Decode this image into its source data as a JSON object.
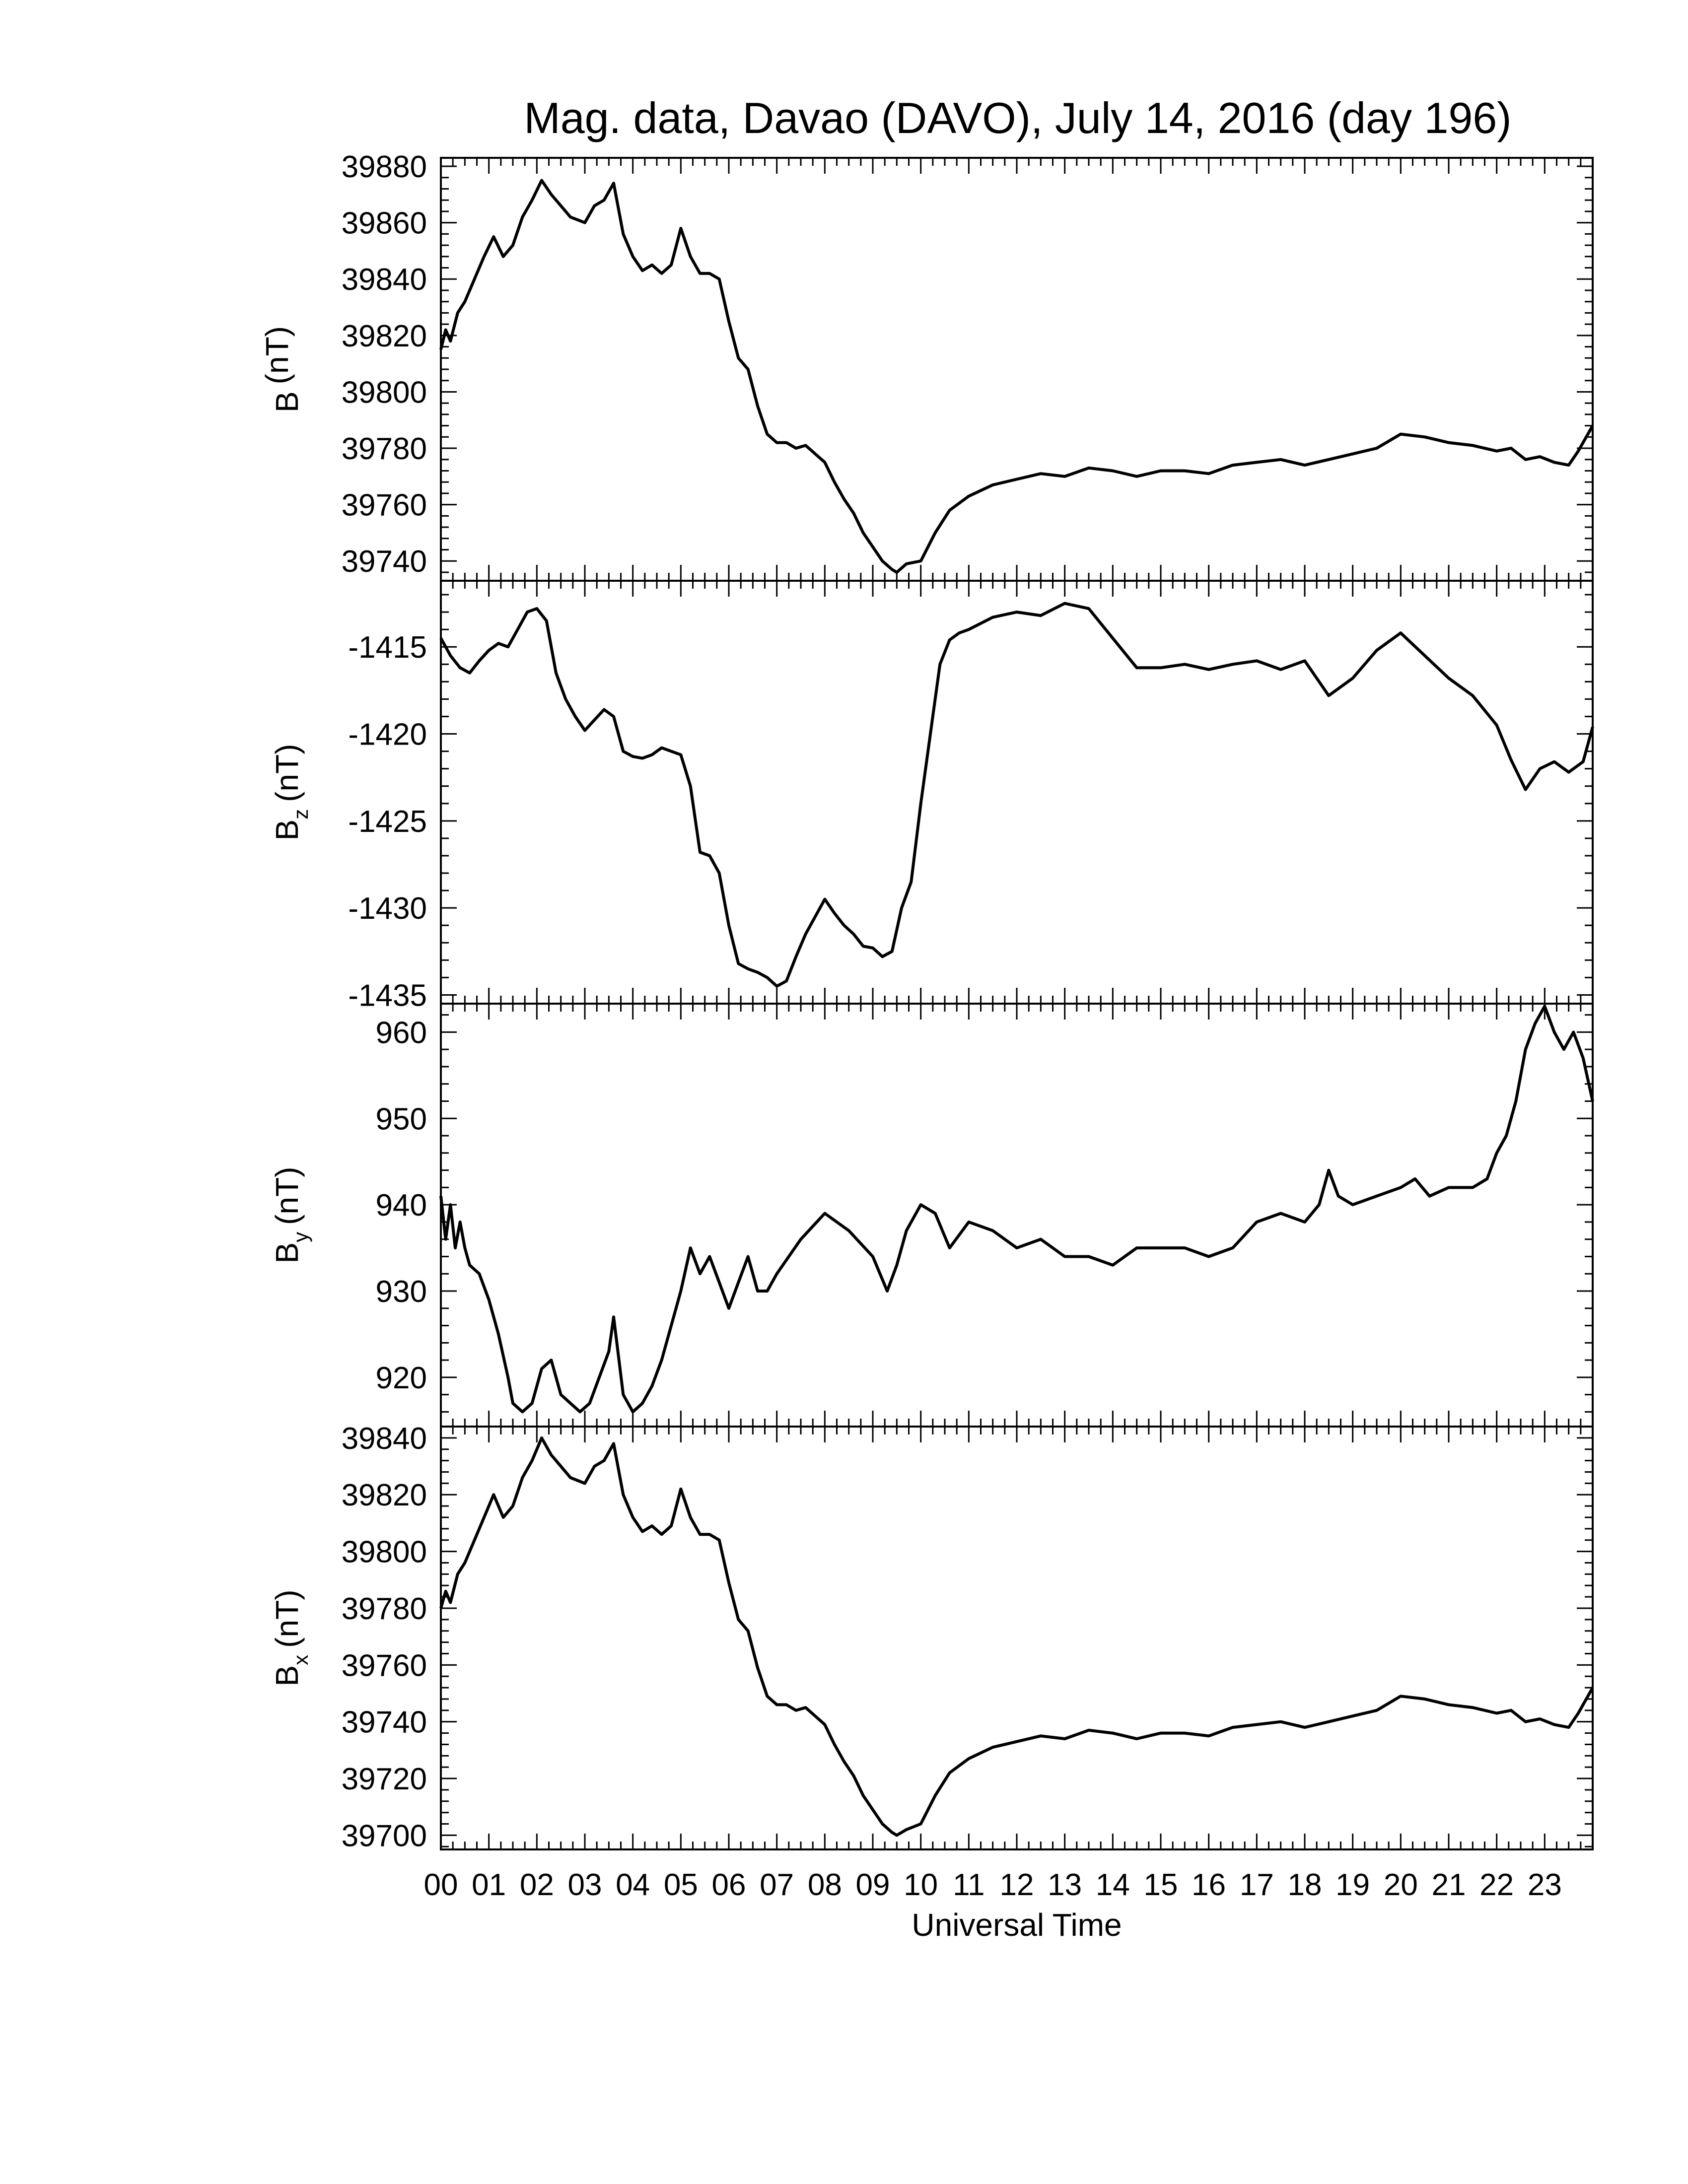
{
  "chart_data": {
    "type": "line",
    "title": "Mag. data, Davao (DAVO), July 14, 2016 (day 196)",
    "xlabel": "Universal Time",
    "xlim": [
      0,
      24
    ],
    "x_tick_labels": [
      "00",
      "01",
      "02",
      "03",
      "04",
      "05",
      "06",
      "07",
      "08",
      "09",
      "10",
      "11",
      "12",
      "13",
      "14",
      "15",
      "16",
      "17",
      "18",
      "19",
      "20",
      "21",
      "22",
      "23"
    ],
    "panels": [
      {
        "ylabel": "B (nT)",
        "ylabel_main": "B",
        "ylabel_sub": "",
        "ylabel_unit": "(nT)",
        "ylim": [
          39733,
          39883
        ],
        "y_ticks": [
          39740,
          39760,
          39780,
          39800,
          39820,
          39840,
          39860,
          39880
        ],
        "y_tick_labels": [
          "39740",
          "39760",
          "39780",
          "39800",
          "39820",
          "39840",
          "39860",
          "39880"
        ],
        "x": [
          0,
          0.1,
          0.2,
          0.35,
          0.5,
          0.7,
          0.9,
          1.1,
          1.3,
          1.5,
          1.7,
          1.9,
          2.1,
          2.3,
          2.5,
          2.7,
          3.0,
          3.2,
          3.4,
          3.6,
          3.8,
          4.0,
          4.2,
          4.4,
          4.6,
          4.8,
          5.0,
          5.2,
          5.4,
          5.6,
          5.8,
          6.0,
          6.2,
          6.4,
          6.6,
          6.8,
          7.0,
          7.2,
          7.4,
          7.6,
          7.8,
          8.0,
          8.2,
          8.4,
          8.6,
          8.8,
          9.0,
          9.2,
          9.4,
          9.5,
          9.7,
          10.0,
          10.3,
          10.6,
          11.0,
          11.5,
          12.0,
          12.5,
          13.0,
          13.5,
          14.0,
          14.5,
          15.0,
          15.5,
          16.0,
          16.5,
          17.0,
          17.5,
          18.0,
          18.5,
          19.0,
          19.5,
          20.0,
          20.5,
          21.0,
          21.5,
          22.0,
          22.3,
          22.6,
          22.9,
          23.2,
          23.5,
          23.7,
          24.0
        ],
        "y": [
          39815,
          39822,
          39818,
          39828,
          39832,
          39840,
          39848,
          39855,
          39848,
          39852,
          39862,
          39868,
          39875,
          39870,
          39866,
          39862,
          39860,
          39866,
          39868,
          39874,
          39856,
          39848,
          39843,
          39845,
          39842,
          39845,
          39858,
          39848,
          39842,
          39842,
          39840,
          39825,
          39812,
          39808,
          39795,
          39785,
          39782,
          39782,
          39780,
          39781,
          39778,
          39775,
          39768,
          39762,
          39757,
          39750,
          39745,
          39740,
          39737,
          39736,
          39739,
          39740,
          39750,
          39758,
          39763,
          39767,
          39769,
          39771,
          39770,
          39773,
          39772,
          39770,
          39772,
          39772,
          39771,
          39774,
          39775,
          39776,
          39774,
          39776,
          39778,
          39780,
          39785,
          39784,
          39782,
          39781,
          39779,
          39780,
          39776,
          39777,
          39775,
          39774,
          39779,
          39788
        ]
      },
      {
        "ylabel": "B z (nT)",
        "ylabel_main": "B",
        "ylabel_sub": "z",
        "ylabel_unit": "(nT)",
        "ylim": [
          -1435.5,
          -1411.2
        ],
        "y_ticks": [
          -1435,
          -1430,
          -1425,
          -1420,
          -1415
        ],
        "y_tick_labels": [
          "-1435",
          "-1430",
          "-1425",
          "-1420",
          "-1415"
        ],
        "x": [
          0,
          0.2,
          0.4,
          0.6,
          0.8,
          1.0,
          1.2,
          1.4,
          1.6,
          1.8,
          2.0,
          2.2,
          2.4,
          2.6,
          2.8,
          3.0,
          3.2,
          3.4,
          3.6,
          3.8,
          4.0,
          4.2,
          4.4,
          4.6,
          4.8,
          5.0,
          5.2,
          5.4,
          5.6,
          5.8,
          6.0,
          6.2,
          6.4,
          6.6,
          6.8,
          7.0,
          7.2,
          7.4,
          7.6,
          7.8,
          8.0,
          8.2,
          8.4,
          8.6,
          8.8,
          9.0,
          9.2,
          9.4,
          9.6,
          9.8,
          10.0,
          10.2,
          10.4,
          10.6,
          10.8,
          11.0,
          11.5,
          12.0,
          12.5,
          13.0,
          13.5,
          14.0,
          14.5,
          15.0,
          15.5,
          16.0,
          16.5,
          17.0,
          17.5,
          18.0,
          18.5,
          19.0,
          19.5,
          20.0,
          20.5,
          21.0,
          21.5,
          22.0,
          22.3,
          22.6,
          22.9,
          23.2,
          23.5,
          23.8,
          24.0
        ],
        "y": [
          -1414.5,
          -1415.5,
          -1416.2,
          -1416.5,
          -1415.8,
          -1415.2,
          -1414.8,
          -1415.0,
          -1414.0,
          -1413.0,
          -1412.8,
          -1413.5,
          -1416.5,
          -1418.0,
          -1419.0,
          -1419.8,
          -1419.2,
          -1418.6,
          -1419.0,
          -1421.0,
          -1421.3,
          -1421.4,
          -1421.2,
          -1420.8,
          -1421.0,
          -1421.2,
          -1423.0,
          -1426.8,
          -1427.0,
          -1428.0,
          -1431.0,
          -1433.2,
          -1433.5,
          -1433.7,
          -1434.0,
          -1434.5,
          -1434.2,
          -1432.8,
          -1431.5,
          -1430.5,
          -1429.5,
          -1430.3,
          -1431.0,
          -1431.5,
          -1432.2,
          -1432.3,
          -1432.8,
          -1432.5,
          -1430.0,
          -1428.5,
          -1424.0,
          -1420.0,
          -1416.0,
          -1414.6,
          -1414.2,
          -1414.0,
          -1413.3,
          -1413.0,
          -1413.2,
          -1412.5,
          -1412.8,
          -1414.5,
          -1416.2,
          -1416.2,
          -1416.0,
          -1416.3,
          -1416.0,
          -1415.8,
          -1416.3,
          -1415.8,
          -1417.8,
          -1416.8,
          -1415.2,
          -1414.2,
          -1415.5,
          -1416.8,
          -1417.8,
          -1419.5,
          -1421.5,
          -1423.2,
          -1422.0,
          -1421.6,
          -1422.2,
          -1421.6,
          -1419.6
        ]
      },
      {
        "ylabel": "B y (nT)",
        "ylabel_main": "B",
        "ylabel_sub": "y",
        "ylabel_unit": "(nT)",
        "ylim": [
          914.3,
          963.3
        ],
        "y_ticks": [
          920,
          930,
          940,
          950,
          960
        ],
        "y_tick_labels": [
          "920",
          "930",
          "940",
          "950",
          "960"
        ],
        "x": [
          0,
          0.1,
          0.2,
          0.3,
          0.4,
          0.5,
          0.6,
          0.8,
          1.0,
          1.2,
          1.4,
          1.5,
          1.7,
          1.9,
          2.1,
          2.3,
          2.5,
          2.7,
          2.9,
          3.1,
          3.3,
          3.5,
          3.6,
          3.8,
          4.0,
          4.2,
          4.4,
          4.6,
          4.8,
          5.0,
          5.2,
          5.4,
          5.6,
          5.8,
          6.0,
          6.2,
          6.4,
          6.6,
          6.8,
          7.0,
          7.5,
          8.0,
          8.5,
          9.0,
          9.3,
          9.5,
          9.7,
          10.0,
          10.3,
          10.6,
          11.0,
          11.5,
          12.0,
          12.5,
          13.0,
          13.5,
          14.0,
          14.5,
          15.0,
          15.5,
          16.0,
          16.5,
          17.0,
          17.5,
          18.0,
          18.3,
          18.5,
          18.7,
          19.0,
          19.5,
          20.0,
          20.3,
          20.6,
          21.0,
          21.5,
          21.8,
          22.0,
          22.2,
          22.4,
          22.6,
          22.8,
          23.0,
          23.2,
          23.4,
          23.6,
          23.8,
          24.0
        ],
        "y": [
          941,
          936,
          940,
          935,
          938,
          935,
          933,
          932,
          929,
          925,
          920,
          917,
          916,
          917,
          921,
          922,
          918,
          917,
          916,
          917,
          920,
          923,
          927,
          918,
          916,
          917,
          919,
          922,
          926,
          930,
          935,
          932,
          934,
          931,
          928,
          931,
          934,
          930,
          930,
          932,
          936,
          939,
          937,
          934,
          930,
          933,
          937,
          940,
          939,
          935,
          938,
          937,
          935,
          936,
          934,
          934,
          933,
          935,
          935,
          935,
          934,
          935,
          938,
          939,
          938,
          940,
          944,
          941,
          940,
          941,
          942,
          943,
          941,
          942,
          942,
          943,
          946,
          948,
          952,
          958,
          961,
          963,
          960,
          958,
          960,
          957,
          952
        ]
      },
      {
        "ylabel": "B x (nT)",
        "ylabel_main": "B",
        "ylabel_sub": "x",
        "ylabel_unit": "(nT)",
        "ylim": [
          39695,
          39844
        ],
        "y_ticks": [
          39700,
          39720,
          39740,
          39760,
          39780,
          39800,
          39820,
          39840
        ],
        "y_tick_labels": [
          "39700",
          "39720",
          "39740",
          "39760",
          "39780",
          "39800",
          "39820",
          "39840"
        ],
        "x": [
          0,
          0.1,
          0.2,
          0.35,
          0.5,
          0.7,
          0.9,
          1.1,
          1.3,
          1.5,
          1.7,
          1.9,
          2.1,
          2.3,
          2.5,
          2.7,
          3.0,
          3.2,
          3.4,
          3.6,
          3.8,
          4.0,
          4.2,
          4.4,
          4.6,
          4.8,
          5.0,
          5.2,
          5.4,
          5.6,
          5.8,
          6.0,
          6.2,
          6.4,
          6.6,
          6.8,
          7.0,
          7.2,
          7.4,
          7.6,
          7.8,
          8.0,
          8.2,
          8.4,
          8.6,
          8.8,
          9.0,
          9.2,
          9.4,
          9.5,
          9.7,
          10.0,
          10.3,
          10.6,
          11.0,
          11.5,
          12.0,
          12.5,
          13.0,
          13.5,
          14.0,
          14.5,
          15.0,
          15.5,
          16.0,
          16.5,
          17.0,
          17.5,
          18.0,
          18.5,
          19.0,
          19.5,
          20.0,
          20.5,
          21.0,
          21.5,
          22.0,
          22.3,
          22.6,
          22.9,
          23.2,
          23.5,
          23.7,
          24.0
        ],
        "y": [
          39780,
          39786,
          39782,
          39792,
          39796,
          39804,
          39812,
          39820,
          39812,
          39816,
          39826,
          39832,
          39840,
          39834,
          39830,
          39826,
          39824,
          39830,
          39832,
          39838,
          39820,
          39812,
          39807,
          39809,
          39806,
          39809,
          39822,
          39812,
          39806,
          39806,
          39804,
          39789,
          39776,
          39772,
          39759,
          39749,
          39746,
          39746,
          39744,
          39745,
          39742,
          39739,
          39732,
          39726,
          39721,
          39714,
          39709,
          39704,
          39701,
          39700,
          39702,
          39704,
          39714,
          39722,
          39727,
          39731,
          39733,
          39735,
          39734,
          39737,
          39736,
          39734,
          39736,
          39736,
          39735,
          39738,
          39739,
          39740,
          39738,
          39740,
          39742,
          39744,
          39749,
          39748,
          39746,
          39745,
          39743,
          39744,
          39740,
          39741,
          39739,
          39738,
          39743,
          39752
        ]
      }
    ]
  }
}
